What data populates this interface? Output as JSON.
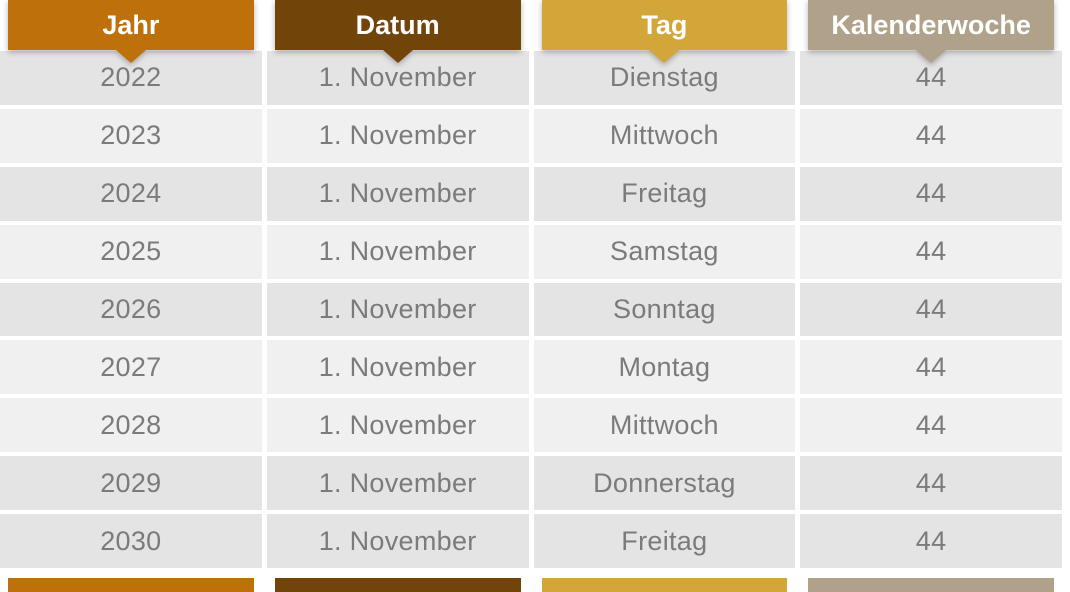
{
  "chart_data": {
    "type": "table",
    "columns": [
      {
        "label": "Jahr",
        "color": "#be710a"
      },
      {
        "label": "Datum",
        "color": "#714509"
      },
      {
        "label": "Tag",
        "color": "#d2a639"
      },
      {
        "label": "Kalenderwoche",
        "color": "#b0a28a"
      }
    ],
    "rows": [
      {
        "jahr": "2022",
        "datum": "1. November",
        "tag": "Dienstag",
        "kw": "44",
        "shade": "dark"
      },
      {
        "jahr": "2023",
        "datum": "1. November",
        "tag": "Mittwoch",
        "kw": "44",
        "shade": "light"
      },
      {
        "jahr": "2024",
        "datum": "1. November",
        "tag": "Freitag",
        "kw": "44",
        "shade": "dark"
      },
      {
        "jahr": "2025",
        "datum": "1. November",
        "tag": "Samstag",
        "kw": "44",
        "shade": "light"
      },
      {
        "jahr": "2026",
        "datum": "1. November",
        "tag": "Sonntag",
        "kw": "44",
        "shade": "dark"
      },
      {
        "jahr": "2027",
        "datum": "1. November",
        "tag": "Montag",
        "kw": "44",
        "shade": "light"
      },
      {
        "jahr": "2028",
        "datum": "1. November",
        "tag": "Mittwoch",
        "kw": "44",
        "shade": "light"
      },
      {
        "jahr": "2029",
        "datum": "1. November",
        "tag": "Donnerstag",
        "kw": "44",
        "shade": "dark"
      },
      {
        "jahr": "2030",
        "datum": "1. November",
        "tag": "Freitag",
        "kw": "44",
        "shade": "dark"
      }
    ],
    "row_shade_colors": {
      "dark": "#e4e4e4",
      "light": "#f0f0f0"
    },
    "cell_text_color": "#7b7b7b",
    "header_text_color": "#ffffff"
  }
}
